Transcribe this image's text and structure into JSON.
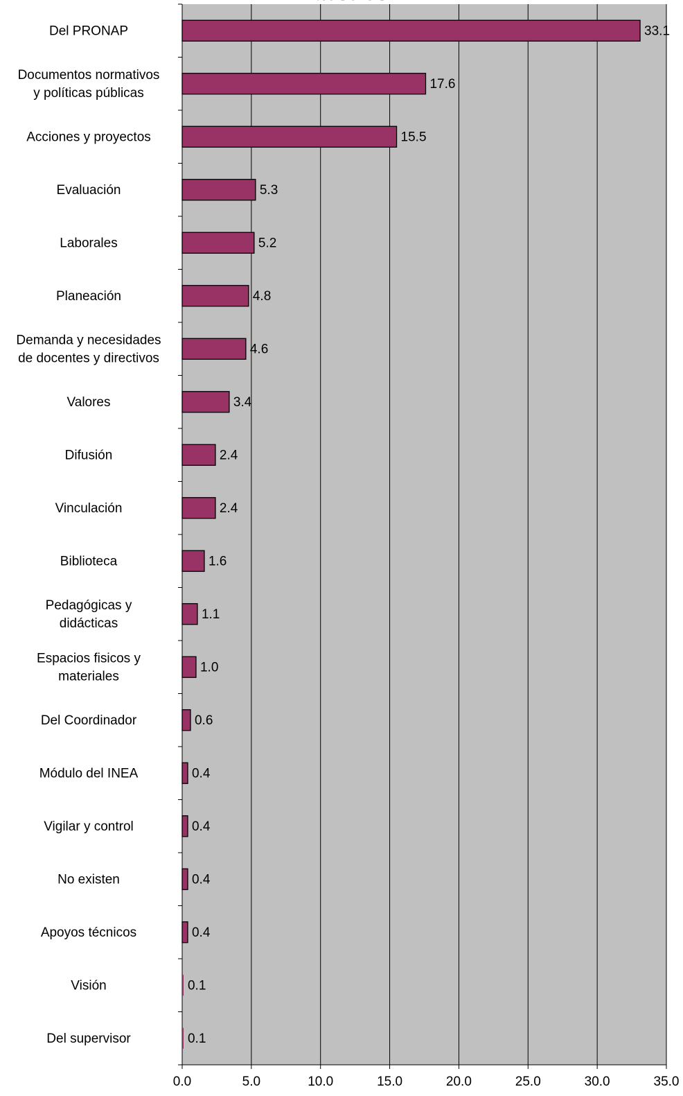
{
  "chart_data": {
    "type": "bar",
    "orientation": "horizontal",
    "title": "Maestros",
    "categories": [
      [
        "Del PRONAP"
      ],
      [
        "Documentos normativos",
        "y políticas públicas"
      ],
      [
        "Acciones y proyectos"
      ],
      [
        "Evaluación"
      ],
      [
        "Laborales"
      ],
      [
        "Planeación"
      ],
      [
        "Demanda y necesidades",
        "de docentes y directivos"
      ],
      [
        "Valores"
      ],
      [
        "Difusión"
      ],
      [
        "Vinculación"
      ],
      [
        "Biblioteca"
      ],
      [
        "Pedagógicas y",
        "didácticas"
      ],
      [
        "Espacios fisicos y",
        "materiales"
      ],
      [
        "Del Coordinador"
      ],
      [
        "Módulo del INEA"
      ],
      [
        "Vigilar y control"
      ],
      [
        "No existen"
      ],
      [
        "Apoyos técnicos"
      ],
      [
        "Visión"
      ],
      [
        "Del supervisor"
      ]
    ],
    "values": [
      33.1,
      17.6,
      15.5,
      5.3,
      5.2,
      4.8,
      4.6,
      3.4,
      2.4,
      2.4,
      1.6,
      1.1,
      1.0,
      0.6,
      0.4,
      0.4,
      0.4,
      0.4,
      0.1,
      0.1
    ],
    "data_labels": [
      "33.1",
      "17.6",
      "15.5",
      "5.3",
      "5.2",
      "4.8",
      "4.6",
      "3.4",
      "2.4",
      "2.4",
      "1.6",
      "1.1",
      "1.0",
      "0.6",
      "0.4",
      "0.4",
      "0.4",
      "0.4",
      "0.1",
      "0.1"
    ],
    "xlim": [
      0,
      35
    ],
    "xticks": [
      "0.0",
      "5.0",
      "10.0",
      "15.0",
      "20.0",
      "25.0",
      "30.0",
      "35.0"
    ],
    "xlabel": "",
    "ylabel": "",
    "grid": true,
    "legend": "none",
    "colors": {
      "bar_fill": "#993366",
      "bar_stroke": "#000000",
      "plot_background": "#c0c0c0",
      "gridline": "#000000"
    }
  }
}
